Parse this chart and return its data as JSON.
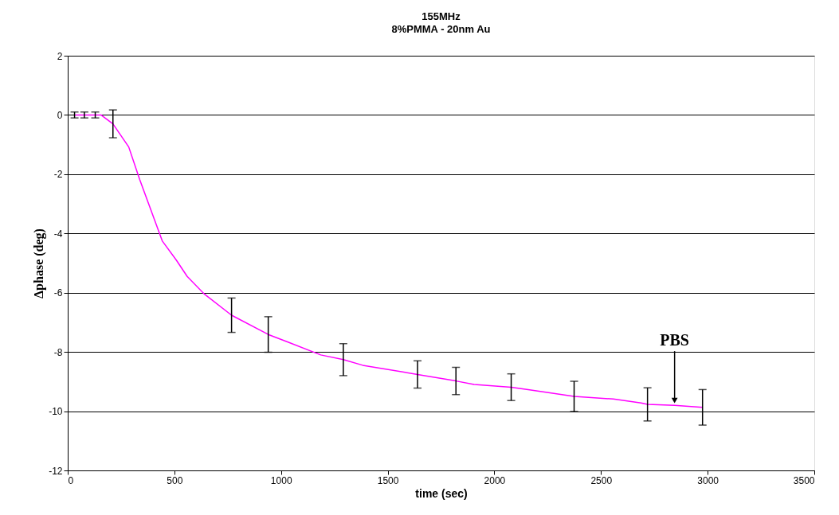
{
  "chart_data": {
    "type": "line",
    "title": "155MHz",
    "subtitle": "8%PMMA - 20nm Au",
    "xlabel": "time (sec)",
    "ylabel": "Δphase (deg)",
    "x": [
      32,
      78,
      129,
      156,
      212,
      286,
      337,
      443,
      509,
      560,
      638,
      768,
      940,
      1030,
      1186,
      1292,
      1383,
      1640,
      1820,
      1905,
      2079,
      2165,
      2374,
      2558,
      2688,
      2718,
      2845,
      2976
    ],
    "series": [
      {
        "color": "#ff00ff",
        "values": [
          0,
          0,
          0,
          0,
          -0.3,
          -1.08,
          -2.17,
          -4.25,
          -4.9,
          -5.45,
          -6.03,
          -6.76,
          -7.41,
          -7.66,
          -8.1,
          -8.26,
          -8.45,
          -8.76,
          -8.98,
          -9.1,
          -9.19,
          -9.28,
          -9.5,
          -9.59,
          -9.72,
          -9.77,
          -9.8,
          -9.87
        ],
        "errors": [
          0.1,
          0.1,
          0.1,
          null,
          0.47,
          null,
          null,
          null,
          null,
          null,
          null,
          0.58,
          0.6,
          null,
          null,
          0.54,
          null,
          0.46,
          0.46,
          null,
          0.45,
          null,
          0.51,
          null,
          null,
          0.56,
          null,
          0.6
        ]
      }
    ],
    "xlim": [
      0,
      3500
    ],
    "xticks": [
      0,
      500,
      1000,
      1500,
      2000,
      2500,
      3000,
      3500
    ],
    "ylim": [
      -12,
      2
    ],
    "yticks": [
      2,
      0,
      -2,
      -4,
      -6,
      -8,
      -10,
      -12
    ],
    "grid": "y",
    "marker": "none",
    "line_style": "solid",
    "annotations": [
      {
        "text": "PBS",
        "x": 2845,
        "y": -9.8
      }
    ]
  }
}
